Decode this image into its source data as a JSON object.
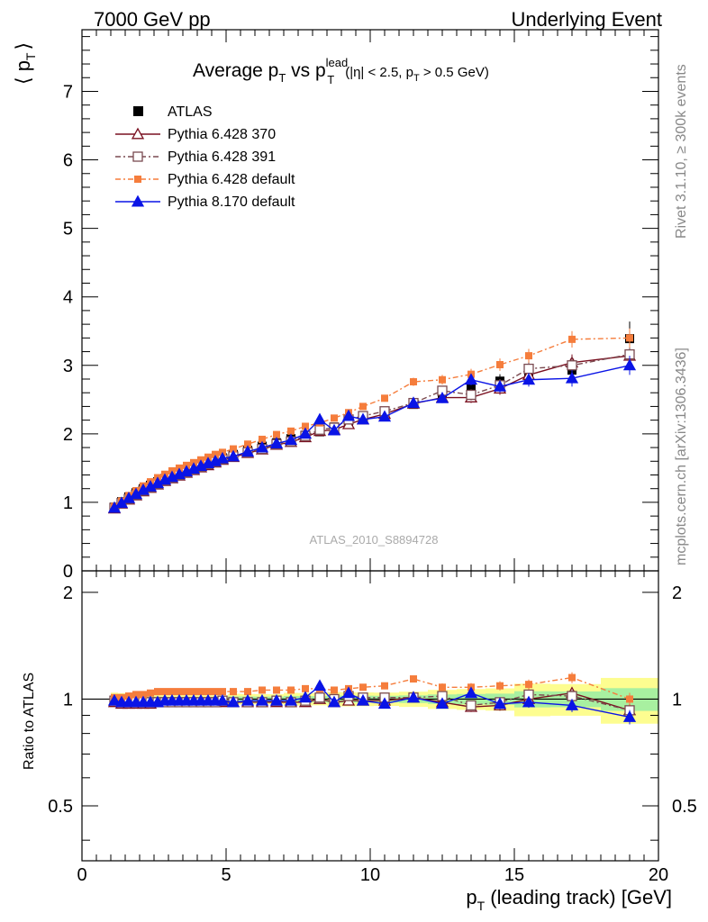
{
  "header": {
    "left": "7000 GeV pp",
    "right": "Underlying Event"
  },
  "side_texts": {
    "rivet": "Rivet 3.1.10, ≥ 300k events",
    "mcplots": "mcplots.cern.ch [arXiv:1306.3436]"
  },
  "chart_data": {
    "type": "line",
    "title": {
      "main": "Average p",
      "main_sub": "T",
      "vs": " vs p",
      "vs_sup": "lead",
      "vs_sub": "T",
      "cut_a": "(|η| < 2.5, p",
      "cut_sub": "T",
      "cut_b": " > 0.5 GeV)"
    },
    "watermark": "ATLAS_2010_S8894728",
    "ylabel_top": {
      "left": "⟨ p",
      "sub": "T",
      "right": "⟩"
    },
    "ylabel_bottom": "Ratio to ATLAS",
    "xlabel": {
      "p": "p",
      "sub": "T",
      "rest": " (leading track) [GeV]"
    },
    "xlim": [
      0,
      20
    ],
    "ylim_top": [
      0,
      7.9
    ],
    "ylim_bottom_log": [
      0.35,
      2.3
    ],
    "x_ticks": [
      "0",
      "5",
      "10",
      "15",
      "20"
    ],
    "y_ticks_top": [
      "0",
      "1",
      "2",
      "3",
      "4",
      "5",
      "6",
      "7"
    ],
    "y_ticks_bottom": [
      "0.5",
      "1",
      "2"
    ],
    "x": [
      1.125,
      1.375,
      1.625,
      1.875,
      2.125,
      2.375,
      2.625,
      2.875,
      3.125,
      3.375,
      3.625,
      3.875,
      4.125,
      4.375,
      4.625,
      4.875,
      5.25,
      5.75,
      6.25,
      6.75,
      7.25,
      7.75,
      8.25,
      8.75,
      9.25,
      9.75,
      10.5,
      11.5,
      12.5,
      13.5,
      14.5,
      15.5,
      17.0,
      19.0
    ],
    "atlas": {
      "name": "ATLAS",
      "values": [
        0.93,
        1.01,
        1.08,
        1.14,
        1.2,
        1.25,
        1.3,
        1.35,
        1.39,
        1.43,
        1.47,
        1.51,
        1.55,
        1.58,
        1.62,
        1.65,
        1.7,
        1.76,
        1.82,
        1.87,
        1.93,
        1.98,
        2.03,
        2.1,
        2.17,
        2.24,
        2.31,
        2.43,
        2.59,
        2.67,
        2.77,
        2.85,
        2.93,
        3.39
      ],
      "errors": [
        0.02,
        0.02,
        0.02,
        0.02,
        0.02,
        0.02,
        0.02,
        0.02,
        0.02,
        0.02,
        0.02,
        0.02,
        0.02,
        0.02,
        0.02,
        0.02,
        0.03,
        0.03,
        0.03,
        0.03,
        0.04,
        0.04,
        0.04,
        0.05,
        0.05,
        0.05,
        0.05,
        0.06,
        0.08,
        0.09,
        0.1,
        0.15,
        0.15,
        0.25
      ]
    },
    "band_colors": {
      "inner": "#a8f0a0",
      "outer": "#fdfd90"
    },
    "series": [
      {
        "name": "Pythia 6.428 370",
        "color": "#7a1020",
        "marker": "triangle-open",
        "dash": "",
        "values": [
          0.91,
          0.98,
          1.04,
          1.1,
          1.16,
          1.21,
          1.26,
          1.31,
          1.35,
          1.39,
          1.43,
          1.47,
          1.51,
          1.54,
          1.58,
          1.62,
          1.66,
          1.72,
          1.77,
          1.84,
          1.88,
          1.95,
          2.04,
          2.06,
          2.14,
          2.21,
          2.29,
          2.44,
          2.53,
          2.53,
          2.66,
          2.86,
          3.04,
          3.14
        ],
        "ratio": [
          0.98,
          0.97,
          0.97,
          0.97,
          0.97,
          0.97,
          0.98,
          0.98,
          0.98,
          0.98,
          0.98,
          0.98,
          0.98,
          0.98,
          0.98,
          0.98,
          0.98,
          0.98,
          0.98,
          0.98,
          0.98,
          0.98,
          1.0,
          0.98,
          0.99,
          0.99,
          0.99,
          1.01,
          0.98,
          0.95,
          0.96,
          1.0,
          1.04,
          0.93
        ],
        "errors": [
          0.01,
          0.01,
          0.01,
          0.01,
          0.01,
          0.01,
          0.01,
          0.01,
          0.01,
          0.01,
          0.01,
          0.01,
          0.01,
          0.01,
          0.01,
          0.01,
          0.02,
          0.02,
          0.02,
          0.02,
          0.03,
          0.03,
          0.03,
          0.04,
          0.05,
          0.05,
          0.05,
          0.06,
          0.07,
          0.08,
          0.09,
          0.1,
          0.12,
          0.14
        ]
      },
      {
        "name": "Pythia 6.428 391",
        "color": "#7a4a50",
        "marker": "square-open",
        "dash": "6,3,2,3",
        "values": [
          0.92,
          0.99,
          1.05,
          1.11,
          1.17,
          1.22,
          1.27,
          1.32,
          1.36,
          1.4,
          1.44,
          1.48,
          1.52,
          1.56,
          1.59,
          1.63,
          1.67,
          1.73,
          1.78,
          1.85,
          1.89,
          1.97,
          2.06,
          2.09,
          2.21,
          2.26,
          2.33,
          2.45,
          2.63,
          2.57,
          2.71,
          2.95,
          3.0,
          3.16
        ],
        "ratio": [
          0.99,
          0.98,
          0.98,
          0.98,
          0.98,
          0.98,
          0.98,
          0.98,
          0.98,
          0.98,
          0.98,
          0.98,
          0.98,
          0.98,
          0.98,
          0.99,
          0.98,
          0.98,
          0.98,
          0.99,
          0.98,
          0.99,
          1.01,
          1.0,
          1.02,
          1.01,
          1.01,
          1.01,
          1.02,
          0.96,
          0.98,
          1.03,
          1.02,
          0.93
        ],
        "errors": [
          0.01,
          0.01,
          0.01,
          0.01,
          0.01,
          0.01,
          0.01,
          0.01,
          0.01,
          0.01,
          0.01,
          0.01,
          0.01,
          0.01,
          0.01,
          0.01,
          0.02,
          0.02,
          0.02,
          0.02,
          0.03,
          0.03,
          0.03,
          0.04,
          0.05,
          0.05,
          0.05,
          0.06,
          0.07,
          0.08,
          0.09,
          0.1,
          0.12,
          0.14
        ]
      },
      {
        "name": "Pythia 6.428 default",
        "color": "#f57d3c",
        "marker": "square-filled",
        "dash": "6,3,2,3",
        "values": [
          0.94,
          1.02,
          1.1,
          1.17,
          1.24,
          1.3,
          1.36,
          1.41,
          1.46,
          1.5,
          1.54,
          1.58,
          1.62,
          1.66,
          1.7,
          1.73,
          1.78,
          1.85,
          1.92,
          1.99,
          2.04,
          2.11,
          2.16,
          2.23,
          2.31,
          2.4,
          2.52,
          2.76,
          2.79,
          2.87,
          3.01,
          3.14,
          3.38,
          3.4
        ],
        "ratio": [
          1.01,
          1.01,
          1.02,
          1.03,
          1.03,
          1.04,
          1.05,
          1.05,
          1.05,
          1.05,
          1.05,
          1.05,
          1.05,
          1.05,
          1.05,
          1.05,
          1.05,
          1.05,
          1.06,
          1.06,
          1.06,
          1.07,
          1.07,
          1.06,
          1.07,
          1.08,
          1.09,
          1.14,
          1.08,
          1.08,
          1.09,
          1.1,
          1.15,
          1.0
        ],
        "errors": [
          0.01,
          0.01,
          0.01,
          0.01,
          0.01,
          0.01,
          0.01,
          0.01,
          0.01,
          0.01,
          0.01,
          0.01,
          0.01,
          0.01,
          0.01,
          0.01,
          0.02,
          0.02,
          0.02,
          0.02,
          0.03,
          0.03,
          0.03,
          0.04,
          0.05,
          0.05,
          0.05,
          0.06,
          0.07,
          0.08,
          0.09,
          0.1,
          0.12,
          0.14
        ]
      },
      {
        "name": "Pythia 8.170 default",
        "color": "#0a14e6",
        "marker": "triangle-filled",
        "dash": "",
        "values": [
          0.92,
          0.99,
          1.06,
          1.12,
          1.18,
          1.23,
          1.28,
          1.33,
          1.37,
          1.41,
          1.45,
          1.49,
          1.53,
          1.57,
          1.6,
          1.64,
          1.67,
          1.74,
          1.8,
          1.86,
          1.91,
          2.0,
          2.21,
          2.05,
          2.26,
          2.21,
          2.25,
          2.45,
          2.52,
          2.79,
          2.69,
          2.79,
          2.81,
          3.0
        ],
        "ratio": [
          0.99,
          0.98,
          0.98,
          0.98,
          0.98,
          0.98,
          0.98,
          0.99,
          0.99,
          0.99,
          0.99,
          0.99,
          0.99,
          0.99,
          0.99,
          0.99,
          0.98,
          0.99,
          0.99,
          0.99,
          0.99,
          1.01,
          1.09,
          0.98,
          1.04,
          0.99,
          0.97,
          1.01,
          0.97,
          1.04,
          0.97,
          0.98,
          0.96,
          0.89
        ],
        "errors": [
          0.01,
          0.01,
          0.01,
          0.01,
          0.01,
          0.01,
          0.01,
          0.01,
          0.01,
          0.01,
          0.01,
          0.01,
          0.01,
          0.01,
          0.01,
          0.01,
          0.02,
          0.02,
          0.02,
          0.02,
          0.03,
          0.03,
          0.03,
          0.04,
          0.05,
          0.05,
          0.05,
          0.06,
          0.07,
          0.08,
          0.09,
          0.1,
          0.12,
          0.14
        ]
      }
    ],
    "legend_placement": "top-left",
    "grid": false
  }
}
